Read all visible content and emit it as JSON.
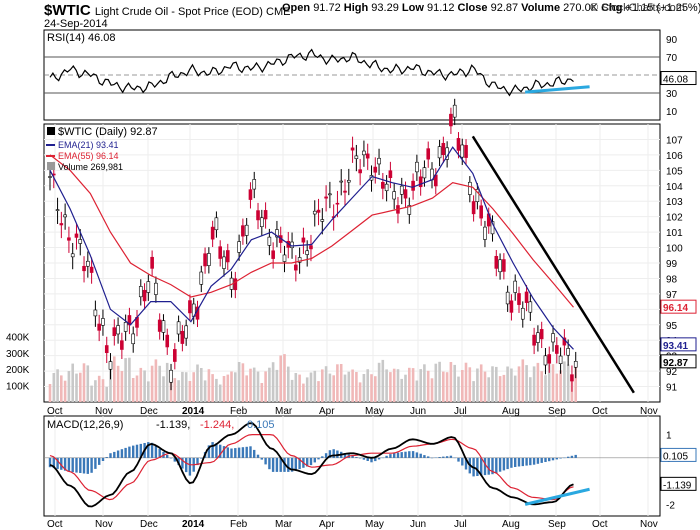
{
  "header": {
    "symbol": "$WTIC",
    "description": "Light Crude Oil - Spot Price (EOD) CME",
    "date": "24-Sep-2014",
    "open_label": "Open",
    "open": "91.72",
    "high_label": "High",
    "high": "93.29",
    "low_label": "Low",
    "low": "91.12",
    "close_label": "Close",
    "close": "92.87",
    "volume_label": "Volume",
    "volume": "270.0K",
    "chg_label": "Chg",
    "chg": "+1.15 (+1.25%)",
    "chg_arrow": "▲",
    "brand": "© StockCharts.com"
  },
  "colors": {
    "price_up": "#000000",
    "price_down": "#cc0033",
    "ema21": "#1f1f8f",
    "ema55": "#dd2233",
    "volume_up": "#c8c8c8",
    "volume_down": "#f0b8b8",
    "trendline": "#000000",
    "divergence": "#2aa8e0",
    "macd_line": "#000000",
    "signal_line": "#dd2233",
    "histogram": "#3a78b8"
  },
  "chart_data": [
    {
      "type": "line",
      "title": "RSI(14) 46.08",
      "legend": "RSI(14) 46.08",
      "ylim": [
        0,
        100
      ],
      "yticks": [
        10,
        30,
        50,
        70,
        90
      ],
      "overbought": 70,
      "oversold": 30,
      "last_value": 46.08,
      "last_label": "46.08",
      "x": [
        0,
        10,
        20,
        30,
        40,
        50,
        60,
        70,
        80,
        90,
        100,
        110,
        120,
        130,
        140,
        150,
        160,
        170,
        180,
        190,
        200,
        210,
        220,
        230,
        240,
        250,
        260
      ],
      "values": [
        45,
        56,
        50,
        40,
        35,
        37,
        48,
        55,
        52,
        60,
        57,
        62,
        70,
        73,
        66,
        70,
        61,
        55,
        58,
        52,
        50,
        57,
        38,
        32,
        38,
        41,
        46
      ]
    },
    {
      "type": "line",
      "title": "$WTIC (Daily) 92.87",
      "legend": [
        {
          "label": "$WTIC (Daily) 92.87"
        },
        {
          "label": "EMA(21) 93.41"
        },
        {
          "label": "EMA(55) 96.14"
        },
        {
          "label": "Volume 269,981"
        }
      ],
      "ylim": [
        90,
        108
      ],
      "yticks": [
        91,
        92,
        93,
        94,
        95,
        96,
        97,
        98,
        99,
        100,
        101,
        102,
        103,
        104,
        105,
        106,
        107
      ],
      "x_months": [
        "Oct",
        "Nov",
        "Dec",
        "2014",
        "Feb",
        "Mar",
        "Apr",
        "May",
        "Jun",
        "Jul",
        "Aug",
        "Sep",
        "Oct",
        "Nov"
      ],
      "x": [
        0,
        10,
        20,
        30,
        40,
        50,
        60,
        70,
        80,
        90,
        100,
        110,
        120,
        130,
        140,
        150,
        160,
        170,
        180,
        190,
        200,
        210,
        220,
        230,
        240,
        250,
        260
      ],
      "series": [
        {
          "name": "Close",
          "values": [
            104,
            101,
            98,
            93,
            95,
            98,
            93,
            95,
            101,
            98,
            103,
            101,
            99,
            101,
            103,
            105,
            106,
            103,
            104,
            105,
            108,
            104,
            100,
            97,
            95,
            93,
            92.87
          ]
        },
        {
          "name": "EMA(21)",
          "values": [
            105,
            102.5,
            99.5,
            96,
            95,
            96.5,
            96.5,
            95.2,
            97.5,
            98.6,
            100.5,
            101,
            100.1,
            100.2,
            101.8,
            103.2,
            104.6,
            104.2,
            103.9,
            104.4,
            106.5,
            104.8,
            101.5,
            99,
            96.7,
            94.8,
            93.41
          ]
        },
        {
          "name": "EMA(55)",
          "values": [
            106,
            105,
            103.5,
            101,
            99,
            98.2,
            97.6,
            96.8,
            97.1,
            97.6,
            98.4,
            99,
            99,
            99.3,
            100.1,
            101.1,
            102.1,
            102.4,
            102.7,
            103.2,
            104.2,
            103.9,
            102.5,
            100.9,
            99.2,
            97.7,
            96.14
          ]
        }
      ],
      "volume_axis_labels": [
        "100K",
        "200K",
        "300K",
        "400K"
      ],
      "volume_ylim": [
        0,
        500000
      ],
      "volume_values": [
        200,
        240,
        160,
        280,
        210,
        260,
        190,
        230,
        170,
        250,
        210,
        300,
        180,
        220,
        240,
        200,
        260,
        210,
        230,
        250,
        240,
        230,
        220,
        260,
        240,
        250,
        270
      ],
      "trendline": {
        "from": [
          210,
          107.2
        ],
        "to": [
          290,
          90.6
        ]
      },
      "ema21_label": "93.41",
      "ema55_label": "96.14",
      "close_label": "92.87",
      "last_close": 92.87
    },
    {
      "type": "line",
      "title": "MACD(12,26,9) -1.139, -1.244, 0.105",
      "legend_name": "MACD(12,26,9)",
      "legend_macd": "-1.139,",
      "legend_signal": "-1.244,",
      "legend_hist": "0.105",
      "ylim": [
        -2.5,
        1.8
      ],
      "yticks": [
        -2,
        -1,
        0,
        1
      ],
      "x_months": [
        "Oct",
        "Nov",
        "Dec",
        "2014",
        "Feb",
        "Mar",
        "Apr",
        "May",
        "Jun",
        "Jul",
        "Aug",
        "Sep",
        "Oct",
        "Nov"
      ],
      "x": [
        0,
        10,
        20,
        30,
        40,
        50,
        60,
        70,
        80,
        90,
        100,
        110,
        120,
        130,
        140,
        150,
        160,
        170,
        180,
        190,
        200,
        210,
        220,
        230,
        240,
        250,
        260
      ],
      "series": [
        {
          "name": "MACD",
          "values": [
            -0.3,
            -1.2,
            -2.1,
            -1.6,
            -0.6,
            0.6,
            0.2,
            -1.1,
            0.5,
            1.0,
            1.5,
            0.4,
            -0.5,
            -0.7,
            0.1,
            0.2,
            0.0,
            0.4,
            0.8,
            0.6,
            0.9,
            -0.4,
            -1.3,
            -1.7,
            -2.0,
            -1.9,
            -1.139
          ]
        },
        {
          "name": "Signal",
          "values": [
            0.1,
            -0.6,
            -1.4,
            -1.8,
            -1.1,
            -0.1,
            0.2,
            -0.3,
            -0.2,
            0.6,
            1.0,
            1.0,
            0.1,
            -0.4,
            -0.3,
            0.1,
            0.2,
            0.2,
            0.5,
            0.6,
            0.8,
            0.4,
            -0.6,
            -1.3,
            -1.7,
            -1.8,
            -1.244
          ]
        },
        {
          "name": "Histogram",
          "values": [
            -0.4,
            -0.6,
            -0.7,
            0.2,
            0.5,
            0.7,
            0.0,
            -0.8,
            0.7,
            0.4,
            0.5,
            -0.6,
            -0.6,
            -0.3,
            0.4,
            0.1,
            -0.2,
            0.2,
            0.3,
            0.0,
            0.1,
            -0.8,
            -0.7,
            -0.4,
            -0.3,
            -0.1,
            0.105
          ]
        }
      ],
      "macd_label": "-1.139",
      "hist_label": "0.105"
    }
  ]
}
